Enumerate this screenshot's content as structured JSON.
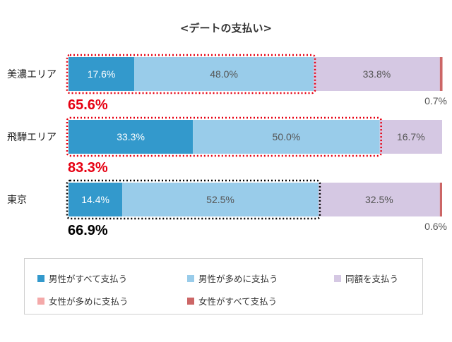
{
  "chart_data": {
    "type": "bar",
    "orientation": "horizontal",
    "stacked": true,
    "title": "<デートの支払い>",
    "categories": [
      "美濃エリア",
      "飛騨エリア",
      "東京"
    ],
    "series": [
      {
        "name": "男性がすべて支払う",
        "color": "#3399cc",
        "values": [
          17.6,
          33.3,
          14.4
        ],
        "labels": [
          "17.6%",
          "33.3%",
          "14.4%"
        ]
      },
      {
        "name": "男性が多めに支払う",
        "color": "#99ccea",
        "values": [
          48.0,
          50.0,
          52.5
        ],
        "labels": [
          "48.0%",
          "50.0%",
          "52.5%"
        ]
      },
      {
        "name": "同額を支払う",
        "color": "#d5c8e3",
        "values": [
          33.8,
          16.7,
          32.5
        ],
        "labels": [
          "33.8%",
          "16.7%",
          "32.5%"
        ]
      },
      {
        "name": "女性が多めに支払う",
        "color": "#f4a9a9",
        "values": [
          0,
          0,
          0
        ],
        "labels": [
          "",
          "",
          ""
        ]
      },
      {
        "name": "女性がすべて支払う",
        "color": "#cc6666",
        "values": [
          0.7,
          0,
          0.6
        ],
        "labels": [
          "0.7%",
          "",
          "0.6%"
        ]
      }
    ],
    "annotations": [
      {
        "category": "美濃エリア",
        "text": "65.6%",
        "color": "#e60012"
      },
      {
        "category": "飛騨エリア",
        "text": "83.3%",
        "color": "#e60012"
      },
      {
        "category": "東京",
        "text": "66.9%",
        "color": "#000000"
      }
    ],
    "xlim": [
      0,
      100
    ],
    "grid": false,
    "legend_position": "bottom"
  }
}
